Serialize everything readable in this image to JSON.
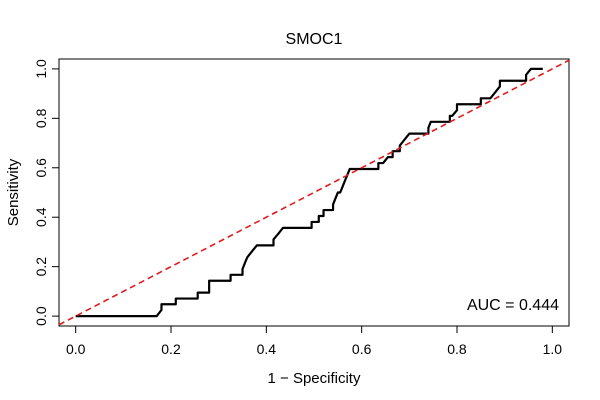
{
  "chart_data": {
    "type": "line",
    "title": "SMOC1",
    "xlabel": "1 − Specificity",
    "ylabel": "Sensitivity",
    "xlim": [
      -0.035,
      1.035
    ],
    "ylim": [
      -0.04,
      1.04
    ],
    "x_ticks": [
      0,
      0.2,
      0.4,
      0.6,
      0.8,
      1
    ],
    "x_tick_labels": [
      "0.0",
      "0.2",
      "0.4",
      "0.6",
      "0.8",
      "1.0"
    ],
    "y_ticks": [
      0,
      0.2,
      0.4,
      0.6,
      0.8,
      1
    ],
    "y_tick_labels": [
      "0.0",
      "0.2",
      "0.4",
      "0.6",
      "0.8",
      "1.0"
    ],
    "grid": false,
    "annotation": "AUC = 0.444",
    "series": [
      {
        "name": "ROC",
        "color": "#000000",
        "style": "solid",
        "points": [
          [
            0,
            0
          ],
          [
            0.17,
            0
          ],
          [
            0.18,
            0.025
          ],
          [
            0.18,
            0.048
          ],
          [
            0.21,
            0.048
          ],
          [
            0.21,
            0.071
          ],
          [
            0.256,
            0.071
          ],
          [
            0.256,
            0.095
          ],
          [
            0.28,
            0.095
          ],
          [
            0.28,
            0.143
          ],
          [
            0.325,
            0.143
          ],
          [
            0.325,
            0.167
          ],
          [
            0.35,
            0.167
          ],
          [
            0.35,
            0.19
          ],
          [
            0.355,
            0.215
          ],
          [
            0.36,
            0.238
          ],
          [
            0.37,
            0.262
          ],
          [
            0.38,
            0.286
          ],
          [
            0.415,
            0.286
          ],
          [
            0.415,
            0.31
          ],
          [
            0.425,
            0.333
          ],
          [
            0.435,
            0.357
          ],
          [
            0.495,
            0.357
          ],
          [
            0.495,
            0.381
          ],
          [
            0.51,
            0.381
          ],
          [
            0.51,
            0.405
          ],
          [
            0.52,
            0.405
          ],
          [
            0.52,
            0.429
          ],
          [
            0.54,
            0.429
          ],
          [
            0.54,
            0.452
          ],
          [
            0.545,
            0.476
          ],
          [
            0.55,
            0.5
          ],
          [
            0.555,
            0.5
          ],
          [
            0.56,
            0.524
          ],
          [
            0.565,
            0.548
          ],
          [
            0.57,
            0.571
          ],
          [
            0.575,
            0.595
          ],
          [
            0.635,
            0.595
          ],
          [
            0.635,
            0.619
          ],
          [
            0.645,
            0.619
          ],
          [
            0.655,
            0.643
          ],
          [
            0.665,
            0.643
          ],
          [
            0.665,
            0.667
          ],
          [
            0.68,
            0.667
          ],
          [
            0.68,
            0.69
          ],
          [
            0.69,
            0.714
          ],
          [
            0.7,
            0.738
          ],
          [
            0.74,
            0.738
          ],
          [
            0.74,
            0.762
          ],
          [
            0.745,
            0.786
          ],
          [
            0.785,
            0.786
          ],
          [
            0.785,
            0.81
          ],
          [
            0.79,
            0.81
          ],
          [
            0.8,
            0.833
          ],
          [
            0.8,
            0.857
          ],
          [
            0.85,
            0.857
          ],
          [
            0.85,
            0.881
          ],
          [
            0.87,
            0.881
          ],
          [
            0.88,
            0.905
          ],
          [
            0.89,
            0.929
          ],
          [
            0.89,
            0.952
          ],
          [
            0.945,
            0.952
          ],
          [
            0.945,
            0.976
          ],
          [
            0.955,
            1.0
          ],
          [
            0.98,
            1.0
          ]
        ]
      },
      {
        "name": "Reference",
        "color": "#e31a1c",
        "style": "dashed",
        "points": [
          [
            -0.035,
            -0.035
          ],
          [
            1.035,
            1.035
          ]
        ]
      }
    ]
  }
}
